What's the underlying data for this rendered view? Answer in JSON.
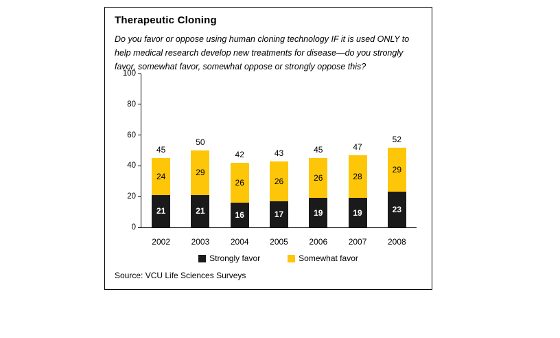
{
  "card": {
    "title": "Therapeutic Cloning",
    "subtitle": "Do you favor or oppose using human cloning technology IF it is used ONLY to help medical research develop new treatments for disease—do you strongly favor, somewhat favor, somewhat oppose or strongly oppose this?",
    "source": "Source: VCU Life Sciences Surveys"
  },
  "chart_data": {
    "type": "bar",
    "stacked": true,
    "title": "Therapeutic Cloning",
    "categories": [
      "2002",
      "2003",
      "2004",
      "2005",
      "2006",
      "2007",
      "2008"
    ],
    "series": [
      {
        "name": "Strongly favor",
        "color": "#1a1a1a",
        "label_color": "#ffffff",
        "values": [
          21,
          21,
          16,
          17,
          19,
          19,
          23
        ]
      },
      {
        "name": "Somewhat favor",
        "color": "#fdc608",
        "label_color": "#000000",
        "values": [
          24,
          29,
          26,
          26,
          26,
          28,
          29
        ]
      }
    ],
    "totals": [
      45,
      50,
      42,
      43,
      45,
      47,
      52
    ],
    "xlabel": "",
    "ylabel": "",
    "ylim": [
      0,
      100
    ],
    "yticks": [
      0,
      20,
      40,
      60,
      80,
      100
    ],
    "grid": false,
    "legend_position": "bottom"
  }
}
